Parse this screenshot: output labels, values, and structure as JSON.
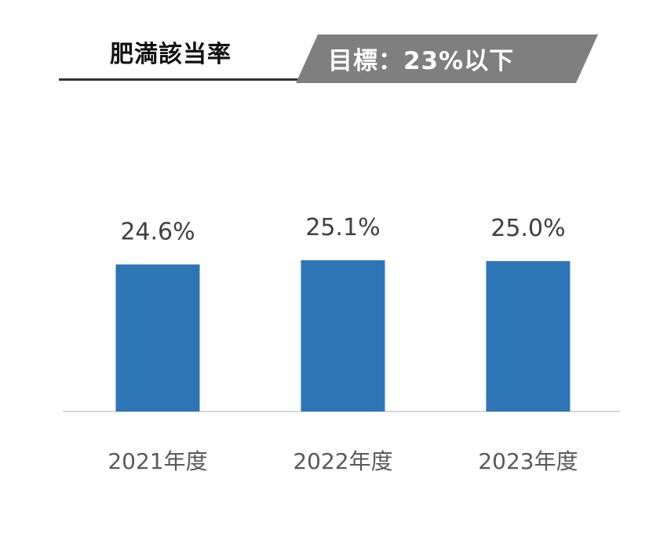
{
  "chart_data": {
    "type": "bar",
    "title": "肥満該当率",
    "target_label": "目標：23%以下",
    "categories": [
      "2021年度",
      "2022年度",
      "2023年度"
    ],
    "values": [
      24.6,
      25.1,
      25.0
    ],
    "data_labels": [
      "24.6%",
      "25.1%",
      "25.0%"
    ],
    "xlabel": "",
    "ylabel": "",
    "grid": false,
    "legend": "none",
    "colors": {
      "bar": "#2e75b6",
      "banner": "#7f7f7f",
      "title": "#111111"
    }
  }
}
